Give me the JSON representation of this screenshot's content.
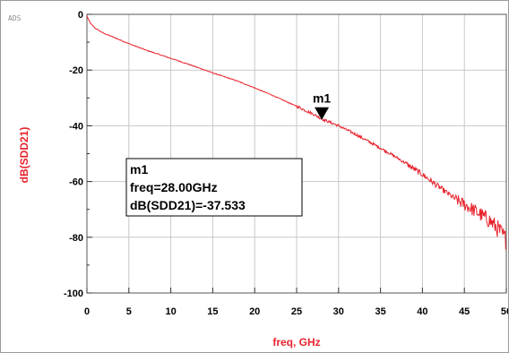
{
  "window": {
    "corner_tag": "ADS"
  },
  "chart_data": {
    "type": "line",
    "title": "",
    "xlabel": "freq, GHz",
    "ylabel": "dB(SDD21)",
    "xlim": [
      0,
      50
    ],
    "ylim": [
      -100,
      0
    ],
    "x_ticks": [
      0,
      5,
      10,
      15,
      20,
      25,
      30,
      35,
      40,
      45,
      50
    ],
    "x_tick_labels": [
      "0",
      "5",
      "10",
      "15",
      "20",
      "25",
      "30",
      "35",
      "40",
      "45",
      "50"
    ],
    "y_ticks": [
      0,
      -20,
      -40,
      -60,
      -80,
      -100
    ],
    "y_tick_labels": [
      "0",
      "-20",
      "-40",
      "-60",
      "-80",
      "-100"
    ],
    "grid": true,
    "line_color": "#e8222c",
    "series": [
      {
        "x": [
          0,
          0.2,
          0.5,
          1,
          2,
          3,
          5,
          7,
          10,
          12,
          15,
          18,
          20,
          22,
          25,
          27,
          28,
          30,
          32,
          35,
          37,
          40,
          42,
          44,
          46,
          48,
          49,
          50
        ],
        "y": [
          -0.5,
          -2,
          -3.5,
          -5,
          -6.8,
          -8,
          -10.5,
          -12.8,
          -15.8,
          -17.8,
          -21,
          -24,
          -26.4,
          -28.9,
          -33,
          -35.8,
          -37.533,
          -40,
          -43,
          -48,
          -51.5,
          -57.5,
          -62,
          -66.5,
          -70,
          -74,
          -77,
          -81
        ]
      }
    ],
    "marker": {
      "name": "m1",
      "x": 28.0,
      "y": -37.533,
      "readout": {
        "line1": "m1",
        "line2": "freq=28.00GHz",
        "line3": "dB(SDD21)=-37.533"
      }
    }
  }
}
